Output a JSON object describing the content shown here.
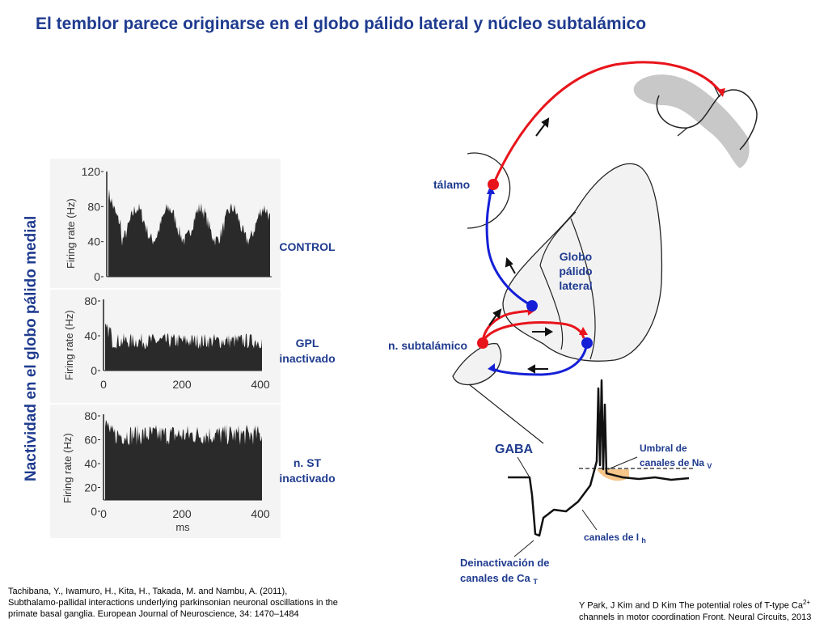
{
  "title": "El temblor parece originarse en el globo pálido lateral y núcleo subtalámico",
  "y_axis_title": "Nactividad en el globo pálido medial",
  "panels": [
    {
      "label_lines": [
        "CONTROL"
      ],
      "y_axis_label": "Firing rate (Hz)",
      "y_ticks": [
        "120",
        "80",
        "40",
        "0"
      ]
    },
    {
      "label_lines": [
        "GPL",
        "inactivado"
      ],
      "y_axis_label": "Firing rate (Hz)",
      "y_ticks": [
        "80",
        "40",
        "0"
      ],
      "x_ticks": [
        "0",
        "200",
        "400"
      ]
    },
    {
      "label_lines": [
        "n. ST",
        "inactivado"
      ],
      "y_axis_label": "Firing rate (Hz)",
      "y_ticks": [
        "80",
        "60",
        "40",
        "20",
        "0"
      ],
      "x_ticks": [
        "0",
        "200",
        "400"
      ],
      "x_axis_label": "ms"
    }
  ],
  "diagram": {
    "thalamus_label": "tálamo",
    "gp_label_lines": [
      "Globo",
      "pálido",
      "lateral"
    ],
    "stn_label": "n. subtalámico",
    "gaba_label": "GABA",
    "na_threshold": {
      "text": "Umbral de",
      "line2": "canales de Na",
      "sub": "V"
    },
    "ih_label": {
      "text": "canales de I",
      "sub": "h"
    },
    "cat_label": {
      "line1": "Deinactivación de",
      "line2": "canales de Ca",
      "sub": "T"
    },
    "colors": {
      "red": "#e8141b",
      "blue": "#1520d6",
      "cortex": "#c8c8c8",
      "shade": "#f5c58a"
    }
  },
  "refs": {
    "left": [
      "Tachibana, Y., Iwamuro, H., Kita, H., Takada, M. and Nambu, A. (2011),",
      "Subthalamo-pallidal interactions underlying parkinsonian neuronal oscillations in the",
      "primate basal ganglia. European Journal of Neuroscience, 34: 1470–1484"
    ],
    "right": {
      "line1": "Y Park, J Kim and  D Kim The potential roles of T-type Ca",
      "sup": "2+",
      "line2": "channels in motor coordination Front. Neural Circuits, 2013"
    }
  }
}
